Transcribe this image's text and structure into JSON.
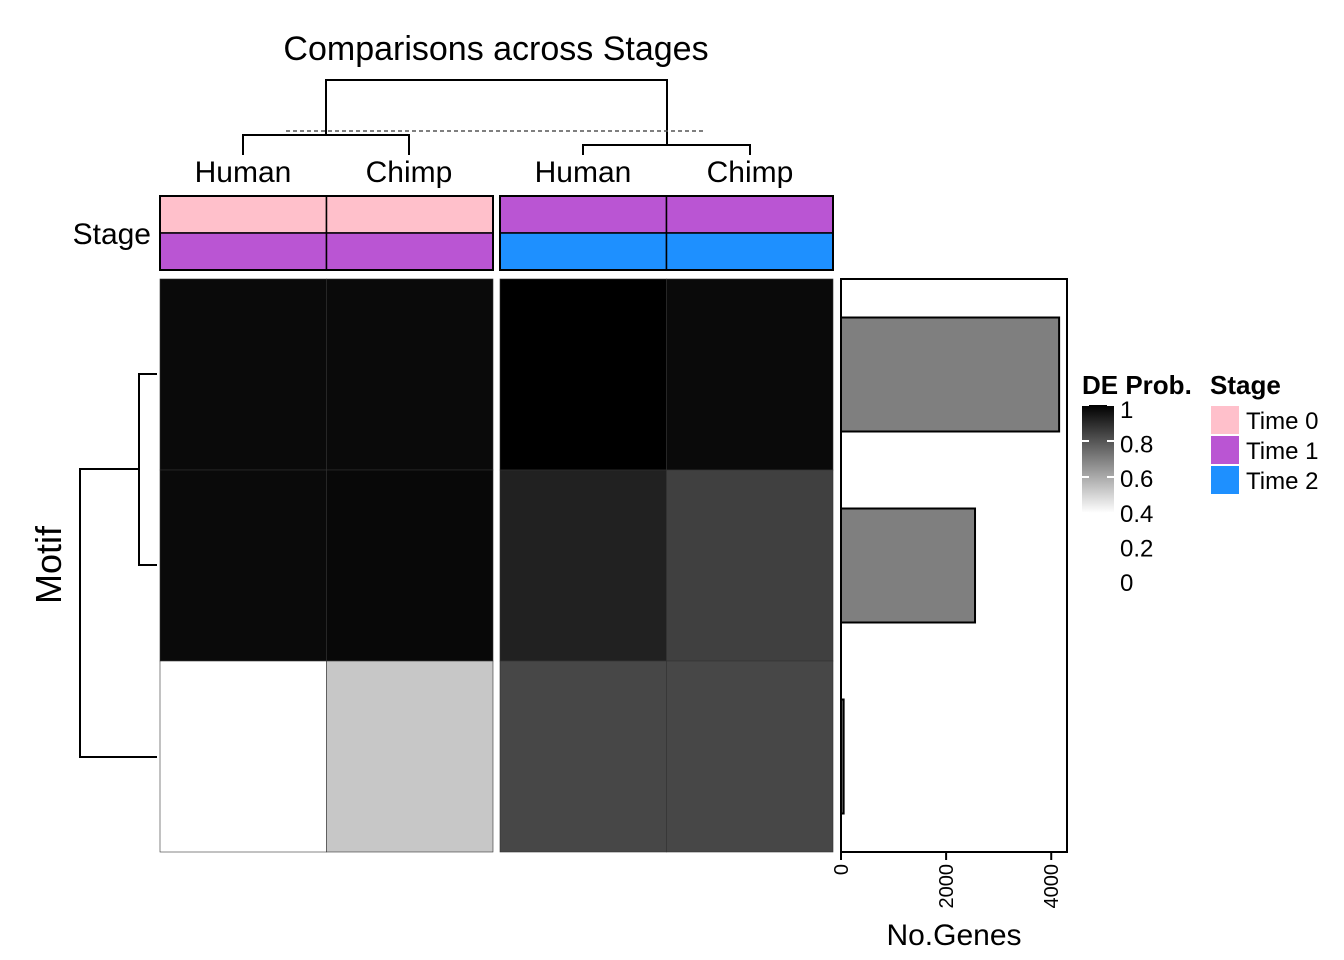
{
  "chart_data": {
    "type": "heatmap",
    "title": "Comparisons across Stages",
    "column_groups": [
      {
        "columns": [
          "Human",
          "Chimp"
        ],
        "stage_top": "Time 0",
        "stage_bottom": "Time 1"
      },
      {
        "columns": [
          "Human",
          "Chimp"
        ],
        "stage_top": "Time 1",
        "stage_bottom": "Time 2"
      }
    ],
    "annotation_label": "Stage",
    "row_axis_label": "Motif",
    "values": [
      [
        0.96,
        0.96,
        1.0,
        0.96
      ],
      [
        0.96,
        0.97,
        0.87,
        0.75
      ],
      [
        0.0,
        0.22,
        0.72,
        0.72
      ]
    ],
    "bar": {
      "xlabel": "No.Genes",
      "ticks": [
        "0",
        "2000",
        "4000"
      ],
      "xlim": [
        0,
        4300
      ],
      "values": [
        4150,
        2550,
        50
      ]
    },
    "legend_de": {
      "title": "DE Prob.",
      "labels": [
        "1",
        "0.8",
        "0.6",
        "0.4",
        "0.2",
        "0"
      ],
      "range": [
        0,
        1
      ]
    },
    "legend_stage": {
      "title": "Stage",
      "items": [
        {
          "label": "Time 0",
          "color": "#FFC0CB"
        },
        {
          "label": "Time 1",
          "color": "#BA55D3"
        },
        {
          "label": "Time 2",
          "color": "#1E90FF"
        }
      ]
    }
  }
}
